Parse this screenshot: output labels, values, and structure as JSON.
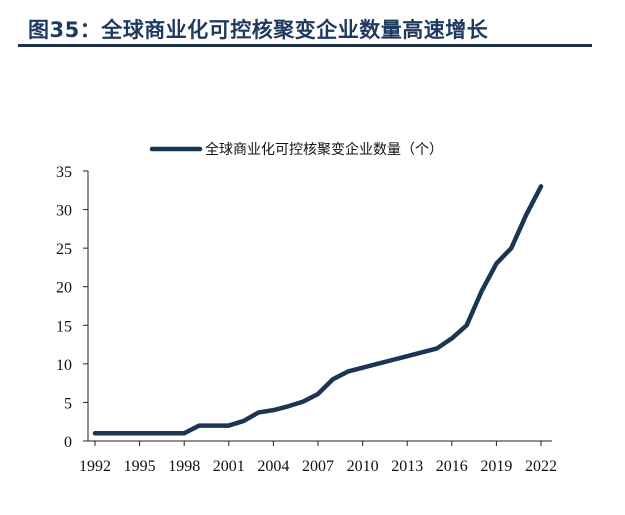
{
  "header": {
    "title": "图35：全球商业化可控核聚变企业数量高速增长"
  },
  "chart_data": {
    "type": "line",
    "title": "",
    "xlabel": "",
    "ylabel": "",
    "x": [
      1992,
      1993,
      1994,
      1995,
      1996,
      1997,
      1998,
      1999,
      2000,
      2001,
      2002,
      2003,
      2004,
      2005,
      2006,
      2007,
      2008,
      2009,
      2010,
      2011,
      2012,
      2013,
      2014,
      2015,
      2016,
      2017,
      2018,
      2019,
      2020,
      2021,
      2022
    ],
    "series": [
      {
        "name": "全球商业化可控核聚变企业数量（个）",
        "values": [
          1,
          1,
          1,
          1,
          1,
          1,
          1,
          2,
          2,
          2,
          2.6,
          3.7,
          4,
          4.5,
          5.1,
          6.1,
          8,
          9,
          9.5,
          10,
          10.5,
          11,
          11.5,
          12,
          13.3,
          15,
          19.4,
          23,
          25,
          29.3,
          33
        ],
        "color": "#1c3553"
      }
    ],
    "xticks": [
      "1992",
      "1995",
      "1998",
      "2001",
      "2004",
      "2007",
      "2010",
      "2013",
      "2016",
      "2019",
      "2022"
    ],
    "yticks": [
      "0",
      "5",
      "10",
      "15",
      "20",
      "25",
      "30",
      "35"
    ],
    "xlim": [
      1992,
      2022
    ],
    "ylim": [
      0,
      35
    ],
    "grid": false,
    "legend": "top"
  }
}
